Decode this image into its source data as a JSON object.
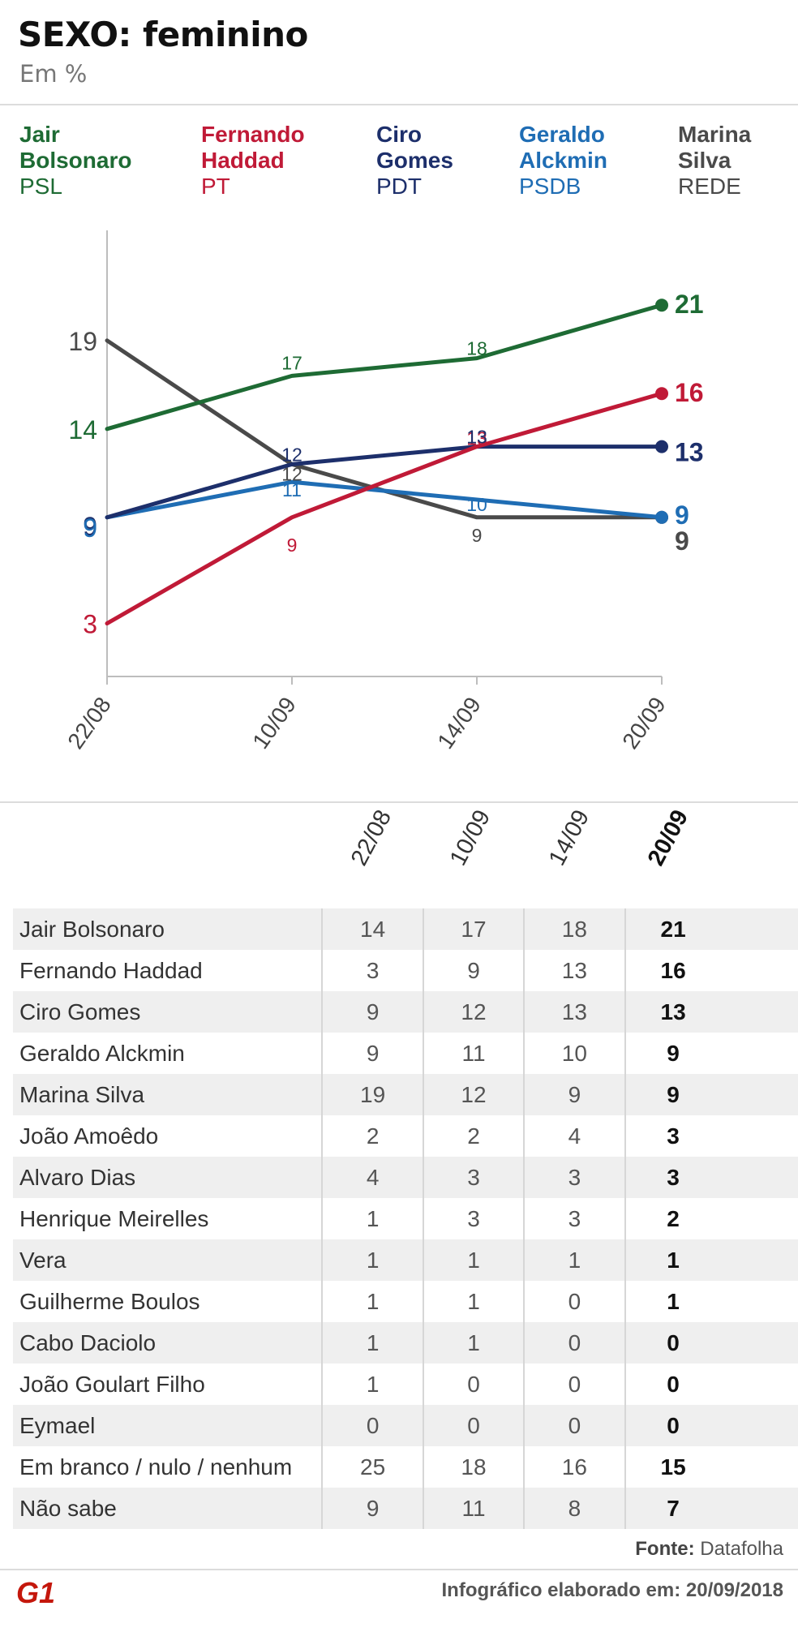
{
  "header": {
    "title": "SEXO: feminino",
    "subtitle": "Em %"
  },
  "legend": [
    {
      "name_line1": "Jair",
      "name_line2": "Bolsonaro",
      "party": "PSL",
      "color": "#1e6b34"
    },
    {
      "name_line1": "Fernando",
      "name_line2": "Haddad",
      "party": "PT",
      "color": "#c01a37"
    },
    {
      "name_line1": "Ciro",
      "name_line2": "Gomes",
      "party": "PDT",
      "color": "#1d2f6b"
    },
    {
      "name_line1": "Geraldo",
      "name_line2": "Alckmin",
      "party": "PSDB",
      "color": "#1f6db4"
    },
    {
      "name_line1": "Marina",
      "name_line2": "Silva",
      "party": "REDE",
      "color": "#4a4a4a"
    }
  ],
  "chart_data": {
    "type": "line",
    "title": "SEXO: feminino",
    "subtitle": "Em %",
    "categories": [
      "22/08",
      "10/09",
      "14/09",
      "20/09"
    ],
    "ylim": [
      0,
      25
    ],
    "grid": false,
    "legend_placement": "top",
    "series": [
      {
        "name": "Jair Bolsonaro",
        "color": "#1e6b34",
        "values": [
          14,
          17,
          18,
          21
        ]
      },
      {
        "name": "Fernando Haddad",
        "color": "#c01a37",
        "values": [
          3,
          9,
          13,
          16
        ]
      },
      {
        "name": "Ciro Gomes",
        "color": "#1d2f6b",
        "values": [
          9,
          12,
          13,
          13
        ]
      },
      {
        "name": "Geraldo Alckmin",
        "color": "#1f6db4",
        "values": [
          9,
          11,
          10,
          9
        ]
      },
      {
        "name": "Marina Silva",
        "color": "#4a4a4a",
        "values": [
          19,
          12,
          9,
          9
        ]
      }
    ]
  },
  "table": {
    "columns": [
      "22/08",
      "10/09",
      "14/09",
      "20/09"
    ],
    "rows": [
      {
        "name": "Jair Bolsonaro",
        "values": [
          "14",
          "17",
          "18",
          "21"
        ]
      },
      {
        "name": "Fernando Haddad",
        "values": [
          "3",
          "9",
          "13",
          "16"
        ]
      },
      {
        "name": "Ciro Gomes",
        "values": [
          "9",
          "12",
          "13",
          "13"
        ]
      },
      {
        "name": "Geraldo Alckmin",
        "values": [
          "9",
          "11",
          "10",
          "9"
        ]
      },
      {
        "name": "Marina Silva",
        "values": [
          "19",
          "12",
          "9",
          "9"
        ]
      },
      {
        "name": "João Amoêdo",
        "values": [
          "2",
          "2",
          "4",
          "3"
        ]
      },
      {
        "name": "Alvaro Dias",
        "values": [
          "4",
          "3",
          "3",
          "3"
        ]
      },
      {
        "name": "Henrique Meirelles",
        "values": [
          "1",
          "3",
          "3",
          "2"
        ]
      },
      {
        "name": "Vera",
        "values": [
          "1",
          "1",
          "1",
          "1"
        ]
      },
      {
        "name": "Guilherme Boulos",
        "values": [
          "1",
          "1",
          "0",
          "1"
        ]
      },
      {
        "name": "Cabo Daciolo",
        "values": [
          "1",
          "1",
          "0",
          "0"
        ]
      },
      {
        "name": "João Goulart Filho",
        "values": [
          "1",
          "0",
          "0",
          "0"
        ]
      },
      {
        "name": "Eymael",
        "values": [
          "0",
          "0",
          "0",
          "0"
        ]
      },
      {
        "name": "Em branco / nulo / nenhum",
        "values": [
          "25",
          "18",
          "16",
          "15"
        ]
      },
      {
        "name": "Não sabe",
        "values": [
          "9",
          "11",
          "8",
          "7"
        ]
      }
    ]
  },
  "footer": {
    "source_label": "Fonte:",
    "source_value": "Datafolha",
    "note": "Infográfico elaborado em: 20/09/2018",
    "logo_text": "G1",
    "logo_color": "#c4170c"
  }
}
